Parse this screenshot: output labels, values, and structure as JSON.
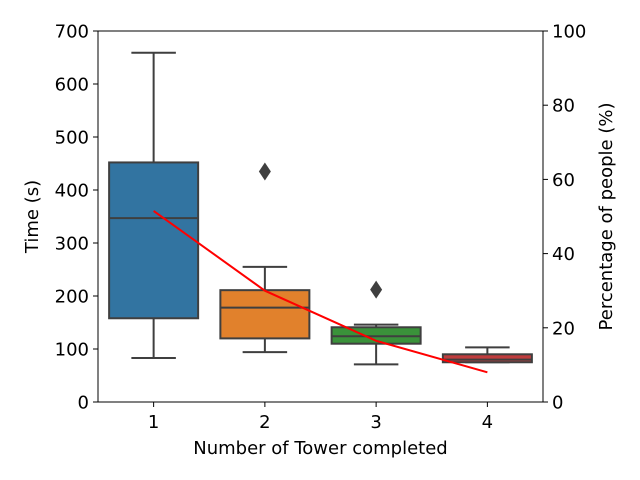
{
  "chart_data": {
    "type": "box",
    "xlabel": "Number of Tower completed",
    "ylabel": "Time (s)",
    "y2label": "Percentage of people (%)",
    "categories": [
      "1",
      "2",
      "3",
      "4"
    ],
    "ylim": [
      0,
      700
    ],
    "yticks": [
      0,
      100,
      200,
      300,
      400,
      500,
      600,
      700
    ],
    "y2lim": [
      0,
      100
    ],
    "y2ticks": [
      0,
      20,
      40,
      60,
      80,
      100
    ],
    "boxes": [
      {
        "category": "1",
        "whisker_low": 83,
        "q1": 158,
        "median": 347,
        "q3": 452,
        "whisker_high": 659,
        "outliers": [],
        "color": "#3274a1"
      },
      {
        "category": "2",
        "whisker_low": 94,
        "q1": 120,
        "median": 178,
        "q3": 211,
        "whisker_high": 255,
        "outliers": [
          435
        ],
        "color": "#e1812c"
      },
      {
        "category": "3",
        "whisker_low": 71,
        "q1": 110,
        "median": 124,
        "q3": 141,
        "whisker_high": 146,
        "outliers": [
          212
        ],
        "color": "#3a923a"
      },
      {
        "category": "4",
        "whisker_low": 75,
        "q1": 75,
        "median": 80,
        "q3": 90,
        "whisker_high": 103,
        "outliers": [],
        "color": "#c03d3e"
      }
    ],
    "line": {
      "axis": "right",
      "color": "#ff0000",
      "values": [
        51.5,
        30,
        16.5,
        8
      ]
    },
    "grid": false
  }
}
